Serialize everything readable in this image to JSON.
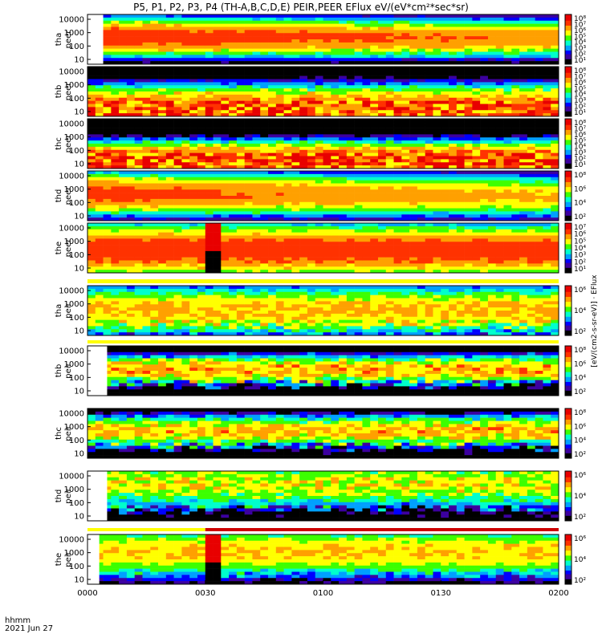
{
  "chart_data": {
    "type": "heatmap",
    "title": "P5, P1, P2, P3, P4 (TH-A,B,C,D,E) PEIR,PEER EFlux eV/(eV*cm²*sec*sr)",
    "x_ticks": [
      "0000",
      "0030",
      "0100",
      "0130",
      "0200"
    ],
    "x_ticks_minutes": [
      0,
      30,
      60,
      90,
      120
    ],
    "x_label": "hhmm",
    "date_label": "2021 Jun 27",
    "xlim_minutes": [
      0,
      120
    ],
    "y_scale": "log",
    "y_ticks": [
      "10000",
      "1000",
      "100",
      "10"
    ],
    "colorbar_side_label": "[eV/(cm2-s-sr-eV)] · EFlux",
    "colormap": [
      "#000000",
      "#3c00a0",
      "#0000ff",
      "#00a0ff",
      "#00ffcc",
      "#3cff00",
      "#ffff00",
      "#ffa000",
      "#ff3200",
      "#e80000"
    ],
    "panels": [
      {
        "probe": "tha",
        "species": "peer",
        "gap_end_min": 4,
        "peak_db": 0.88,
        "band_center": 0.45,
        "band_width": 0.45,
        "noise": 0.08,
        "decay": 0.35,
        "cb_ticks": [
          "10⁸",
          "10⁷",
          "10⁶",
          "10⁵",
          "10⁴",
          "10³",
          "10²",
          "10¹"
        ]
      },
      {
        "probe": "thb",
        "species": "peer",
        "gap_end_min": 0,
        "peak_db": 0.82,
        "band_center": 0.85,
        "band_width": 0.55,
        "noise": 0.22,
        "decay": 0.0,
        "cb_ticks": [
          "10⁸",
          "10⁷",
          "10⁶",
          "10⁵",
          "10⁴",
          "10³",
          "10²",
          "10¹"
        ]
      },
      {
        "probe": "thc",
        "species": "peer",
        "gap_end_min": 0,
        "peak_db": 0.86,
        "band_center": 0.85,
        "band_width": 0.45,
        "noise": 0.28,
        "decay": 0.0,
        "cb_ticks": [
          "10⁸",
          "10⁷",
          "10⁶",
          "10⁵",
          "10⁴",
          "10³",
          "10²",
          "10¹"
        ]
      },
      {
        "probe": "thd",
        "species": "peer",
        "gap_end_min": 0,
        "peak_db": 0.85,
        "band_center": 0.45,
        "band_width": 0.5,
        "noise": 0.06,
        "decay": 0.45,
        "cb_ticks": [
          "10⁸",
          "10⁶",
          "10⁴",
          "10²"
        ]
      },
      {
        "probe": "the",
        "species": "peer",
        "gap_end_min": 0,
        "peak_db": 0.88,
        "band_center": 0.55,
        "band_width": 0.6,
        "noise": 0.06,
        "decay": 0.05,
        "cb_ticks": [
          "10⁷",
          "10⁶",
          "10⁵",
          "10⁴",
          "10³",
          "10²",
          "10¹"
        ],
        "burst_min": [
          30,
          33
        ]
      },
      {
        "probe": "tha",
        "species": "peir",
        "gap_end_min": 0,
        "peak_db": 0.72,
        "band_center": 0.5,
        "band_width": 0.6,
        "noise": 0.18,
        "decay": 0.0,
        "cb_ticks": [
          "10⁶",
          "10⁴",
          "10²"
        ]
      },
      {
        "probe": "thb",
        "species": "peir",
        "gap_end_min": 5,
        "peak_db": 0.74,
        "band_center": 0.48,
        "band_width": 0.35,
        "noise": 0.35,
        "decay": 0.0,
        "cb_ticks": [
          "10⁸",
          "10⁶",
          "10⁴",
          "10²"
        ]
      },
      {
        "probe": "thc",
        "species": "peir",
        "gap_end_min": 0,
        "peak_db": 0.72,
        "band_center": 0.45,
        "band_width": 0.38,
        "noise": 0.35,
        "decay": 0.0,
        "cb_ticks": [
          "10⁸",
          "10⁶",
          "10⁴",
          "10²"
        ]
      },
      {
        "probe": "thd",
        "species": "peir",
        "gap_end_min": 5,
        "peak_db": 0.65,
        "band_center": 0.25,
        "band_width": 0.6,
        "noise": 0.3,
        "decay": 0.0,
        "cb_ticks": [
          "10⁶",
          "10⁴",
          "10²"
        ]
      },
      {
        "probe": "the",
        "species": "peir",
        "gap_end_min": 3,
        "peak_db": 0.7,
        "band_center": 0.35,
        "band_width": 0.6,
        "noise": 0.15,
        "decay": 0.0,
        "cb_ticks": [
          "10⁶",
          "10⁴",
          "10²"
        ],
        "burst_min": [
          30,
          33
        ]
      }
    ]
  }
}
